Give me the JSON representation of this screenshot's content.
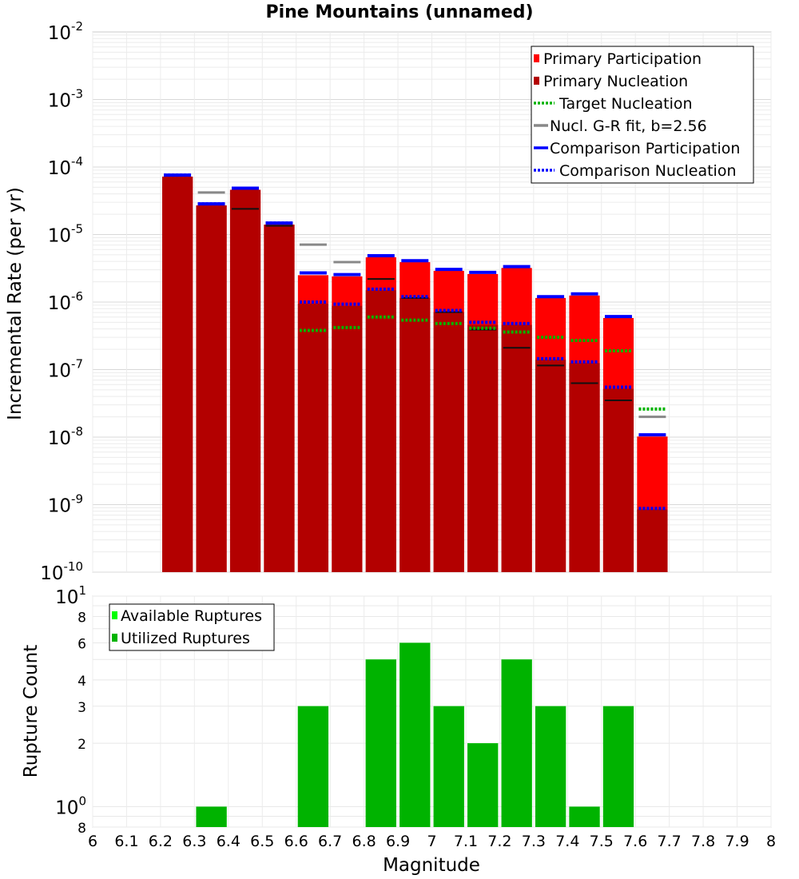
{
  "colors": {
    "primary_participation": "#ff0000",
    "primary_nucleation": "#b30000",
    "target_nucleation": "#00b300",
    "gr_fit": "#888888",
    "comparison_participation": "#0000ff",
    "comparison_nucleation": "#0000ff",
    "available_ruptures": "#00ff00",
    "utilized_ruptures": "#00b300",
    "dark_line": "#111111"
  },
  "chart_data": [
    {
      "type": "bar",
      "title": "Pine Mountains (unnamed)",
      "xlabel": "",
      "ylabel": "Incremental Rate (per yr)",
      "yscale": "log",
      "ylim": [
        1e-10,
        0.01
      ],
      "xlim": [
        6,
        8
      ],
      "y_tick_labels": [
        {
          "base": "10",
          "exp": "-10"
        },
        {
          "base": "10",
          "exp": "-9"
        },
        {
          "base": "10",
          "exp": "-8"
        },
        {
          "base": "10",
          "exp": "-7"
        },
        {
          "base": "10",
          "exp": "-6"
        },
        {
          "base": "10",
          "exp": "-5"
        },
        {
          "base": "10",
          "exp": "-4"
        },
        {
          "base": "10",
          "exp": "-3"
        },
        {
          "base": "10",
          "exp": "-2"
        }
      ],
      "legend": {
        "position": "top-right",
        "entries": [
          "Primary Participation",
          "Primary Nucleation",
          "Target Nucleation",
          "Nucl. G-R fit, b=2.56",
          "Comparison Participation",
          "Comparison Nucleation"
        ]
      },
      "magnitudes": [
        6.25,
        6.35,
        6.45,
        6.55,
        6.65,
        6.75,
        6.85,
        6.95,
        7.05,
        7.15,
        7.25,
        7.35,
        7.45,
        7.55,
        7.65
      ],
      "series": [
        {
          "name": "Primary Participation",
          "values": [
            7.2e-05,
            2.7e-05,
            4.6e-05,
            1.4e-05,
            2.5e-06,
            2.4e-06,
            4.6e-06,
            3.9e-06,
            2.9e-06,
            2.6e-06,
            3.2e-06,
            1.15e-06,
            1.25e-06,
            5.8e-07,
            1.02e-08
          ]
        },
        {
          "name": "Primary Nucleation",
          "values": [
            7.2e-05,
            2.7e-05,
            4.6e-05,
            1.4e-05,
            9.5e-07,
            8.8e-07,
            1.5e-06,
            1.15e-06,
            7.1e-07,
            4.6e-07,
            4.6e-07,
            1.4e-07,
            1.25e-07,
            5.2e-08,
            8.5e-10
          ]
        },
        {
          "name": "Target Nucleation",
          "values": [
            null,
            null,
            null,
            null,
            3.8e-07,
            4.2e-07,
            6e-07,
            5.4e-07,
            4.8e-07,
            4.1e-07,
            3.6e-07,
            3e-07,
            2.7e-07,
            1.9e-07,
            2.6e-08
          ]
        },
        {
          "name": "Nucl. G-R fit, b=2.56",
          "values": [
            null,
            4.2e-05,
            null,
            null,
            7.1e-06,
            3.9e-06,
            null,
            null,
            null,
            null,
            null,
            null,
            null,
            null,
            2e-08
          ]
        },
        {
          "name": "Nucl. G-R fit (dark)",
          "values": [
            null,
            null,
            2.4e-05,
            1.35e-05,
            null,
            null,
            2.2e-06,
            1.15e-06,
            7.1e-07,
            3.9e-07,
            2.1e-07,
            1.15e-07,
            6.3e-08,
            3.5e-08,
            null
          ]
        },
        {
          "name": "Comparison Participation",
          "values": [
            7.6e-05,
            2.85e-05,
            4.85e-05,
            1.48e-05,
            2.7e-06,
            2.55e-06,
            4.85e-06,
            4.1e-06,
            3.05e-06,
            2.75e-06,
            3.35e-06,
            1.2e-06,
            1.32e-06,
            6.1e-07,
            1.08e-08
          ]
        },
        {
          "name": "Comparison Nucleation",
          "values": [
            7.6e-05,
            2.85e-05,
            4.85e-05,
            1.48e-05,
            1e-06,
            9.3e-07,
            1.55e-06,
            1.2e-06,
            7.5e-07,
            5e-07,
            4.8e-07,
            1.45e-07,
            1.3e-07,
            5.5e-08,
            8.8e-10
          ]
        }
      ]
    },
    {
      "type": "bar",
      "title": "",
      "xlabel": "Magnitude",
      "ylabel": "Rupture Count",
      "yscale": "log",
      "ylim": [
        0.8,
        10
      ],
      "xlim": [
        6,
        8
      ],
      "y_tick_labels": [
        {
          "value": 0.8,
          "base": "8",
          "exp": ""
        },
        {
          "value": 1,
          "base": "10",
          "exp": "0"
        },
        {
          "value": 2,
          "base": "2",
          "exp": ""
        },
        {
          "value": 3,
          "base": "3",
          "exp": ""
        },
        {
          "value": 4,
          "base": "4",
          "exp": ""
        },
        {
          "value": 6,
          "base": "6",
          "exp": ""
        },
        {
          "value": 8,
          "base": "8",
          "exp": ""
        },
        {
          "value": 10,
          "base": "10",
          "exp": "1"
        }
      ],
      "x_tick_labels": [
        "6",
        "6.1",
        "6.2",
        "6.3",
        "6.4",
        "6.5",
        "6.6",
        "6.7",
        "6.8",
        "6.9",
        "7",
        "7.1",
        "7.2",
        "7.3",
        "7.4",
        "7.5",
        "7.6",
        "7.7",
        "7.8",
        "7.9",
        "8"
      ],
      "legend": {
        "position": "top-left",
        "entries": [
          "Available Ruptures",
          "Utilized Ruptures"
        ]
      },
      "magnitudes": [
        6.35,
        6.65,
        6.85,
        6.95,
        7.05,
        7.15,
        7.25,
        7.35,
        7.45,
        7.55
      ],
      "series": [
        {
          "name": "Available Ruptures",
          "values": [
            1,
            3,
            5,
            6,
            3,
            2,
            5,
            3,
            1,
            3
          ]
        },
        {
          "name": "Utilized Ruptures",
          "values": [
            1,
            3,
            5,
            6,
            3,
            2,
            5,
            3,
            1,
            3
          ]
        }
      ]
    }
  ]
}
